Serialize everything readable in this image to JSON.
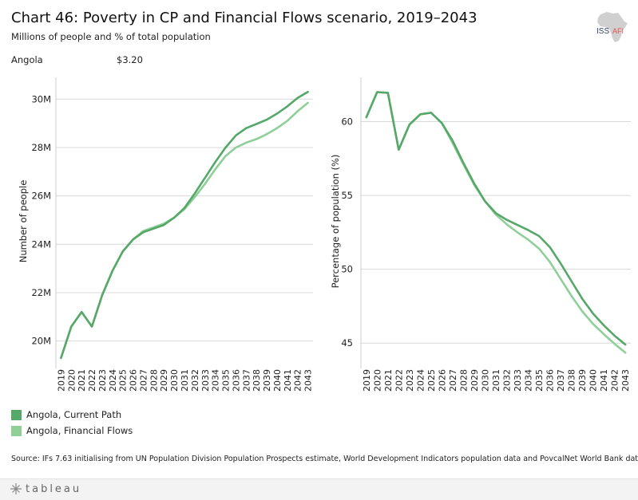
{
  "title": "Chart 46: Poverty in CP and Financial Flows scenario, 2019–2043",
  "subtitle": "Millions of people and % of total population",
  "filter": {
    "country": "Angola",
    "threshold": "$3.20"
  },
  "logo": {
    "text": "ISS",
    "accent_text": "AFI",
    "icon": "africa-map-icon"
  },
  "colors": {
    "current_path": "#55a868",
    "financial_flows": "#8fcf98",
    "grid": "#d9d9d9"
  },
  "legend": [
    {
      "label": "Angola,  Current Path",
      "color": "#55a868"
    },
    {
      "label": "Angola,  Financial Flows",
      "color": "#8fcf98"
    }
  ],
  "source": "Source: IFs 7.63 initialising from UN Population Division Population Prospects estimate, World Development Indicators population data and PovcalNet World Bank data",
  "footer": {
    "brand": "tableau"
  },
  "chart_data": [
    {
      "type": "line",
      "title": "",
      "xlabel": "",
      "ylabel": "Number of people",
      "ylim": [
        19.0,
        30.9
      ],
      "yticks": [
        20,
        22,
        24,
        26,
        28,
        30
      ],
      "ytick_labels": [
        "20M",
        "22M",
        "24M",
        "26M",
        "28M",
        "30M"
      ],
      "x": [
        2019,
        2020,
        2021,
        2022,
        2023,
        2024,
        2025,
        2026,
        2027,
        2028,
        2029,
        2030,
        2031,
        2032,
        2033,
        2034,
        2035,
        2036,
        2037,
        2038,
        2039,
        2040,
        2041,
        2042,
        2043
      ],
      "series": [
        {
          "name": "Angola,  Current Path",
          "values": [
            19.3,
            20.6,
            21.2,
            20.6,
            21.9,
            22.9,
            23.7,
            24.2,
            24.5,
            24.65,
            24.8,
            25.1,
            25.5,
            26.1,
            26.75,
            27.4,
            28.0,
            28.5,
            28.8,
            28.97,
            29.15,
            29.4,
            29.7,
            30.05,
            30.3
          ]
        },
        {
          "name": "Angola,  Financial Flows",
          "values": [
            19.3,
            20.6,
            21.2,
            20.6,
            21.9,
            22.9,
            23.7,
            24.2,
            24.55,
            24.7,
            24.85,
            25.1,
            25.45,
            25.95,
            26.5,
            27.1,
            27.65,
            28.0,
            28.2,
            28.35,
            28.55,
            28.8,
            29.1,
            29.5,
            29.85
          ]
        }
      ]
    },
    {
      "type": "line",
      "title": "",
      "xlabel": "",
      "ylabel": "Percentage of population (%)",
      "ylim": [
        43.5,
        63.0
      ],
      "yticks": [
        45,
        50,
        55,
        60
      ],
      "ytick_labels": [
        "45",
        "50",
        "55",
        "60"
      ],
      "x": [
        2019,
        2020,
        2021,
        2022,
        2023,
        2024,
        2025,
        2026,
        2027,
        2028,
        2029,
        2030,
        2031,
        2032,
        2033,
        2034,
        2035,
        2036,
        2037,
        2038,
        2039,
        2040,
        2041,
        2042,
        2043
      ],
      "series": [
        {
          "name": "Angola,  Current Path",
          "values": [
            60.3,
            62.0,
            61.95,
            58.1,
            59.8,
            60.5,
            60.6,
            59.9,
            58.7,
            57.2,
            55.8,
            54.6,
            53.8,
            53.35,
            53.0,
            52.65,
            52.25,
            51.5,
            50.4,
            49.2,
            48.0,
            47.0,
            46.2,
            45.5,
            44.9
          ]
        },
        {
          "name": "Angola,  Financial Flows",
          "values": [
            60.3,
            62.0,
            61.95,
            58.1,
            59.8,
            60.5,
            60.6,
            59.9,
            58.55,
            57.1,
            55.7,
            54.6,
            53.7,
            53.05,
            52.5,
            52.0,
            51.4,
            50.5,
            49.35,
            48.2,
            47.15,
            46.3,
            45.6,
            44.95,
            44.35
          ]
        }
      ]
    }
  ]
}
